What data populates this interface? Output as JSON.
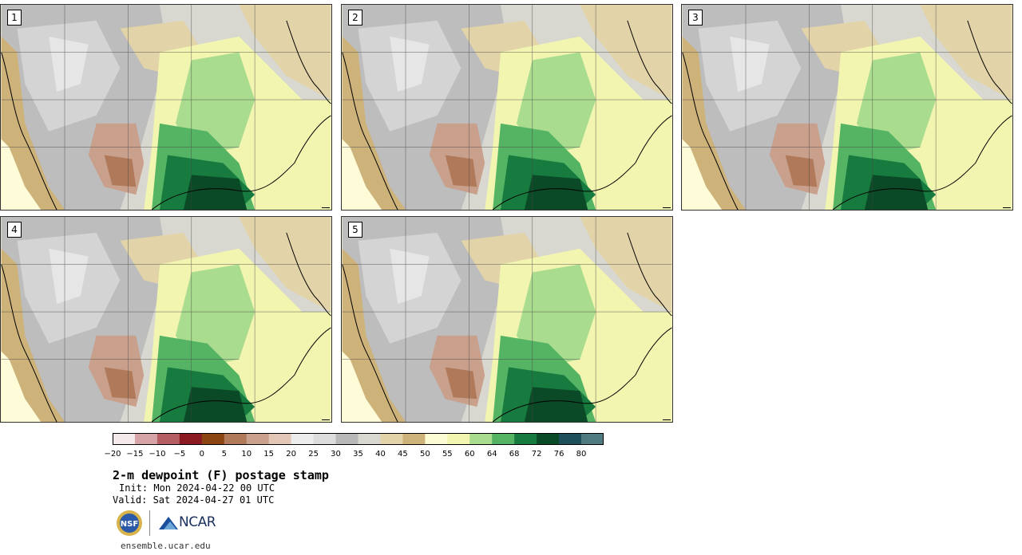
{
  "title": "2-m dewpoint (F) postage stamp",
  "init": "Init: Mon 2024-04-22 00 UTC",
  "valid": "Valid: Sat 2024-04-27 01 UTC",
  "url": "ensemble.ucar.edu",
  "logos": {
    "nsf": "NSF",
    "ncar": "NCAR"
  },
  "members": [
    {
      "label": "1"
    },
    {
      "label": "2"
    },
    {
      "label": "3"
    },
    {
      "label": "4"
    },
    {
      "label": "5"
    }
  ],
  "colorbar": {
    "tick_labels": [
      "−20",
      "−15",
      "−10",
      "−5",
      "0",
      "5",
      "10",
      "15",
      "20",
      "25",
      "30",
      "35",
      "40",
      "45",
      "50",
      "55",
      "60",
      "64",
      "68",
      "72",
      "76",
      "80"
    ],
    "colors": [
      "#f4e9ea",
      "#d6a3a6",
      "#b45e63",
      "#8c1a22",
      "#8b4513",
      "#b07a5a",
      "#c9a08c",
      "#e2c7b6",
      "#ececec",
      "#dcdcdc",
      "#b8b8b8",
      "#d8d8d0",
      "#e3d3a8",
      "#cdb27a",
      "#fbfbd4",
      "#f2f5b0",
      "#a9dc8e",
      "#55b463",
      "#177a3f",
      "#0b4a27",
      "#1f4f5a",
      "#4f7a80"
    ]
  }
}
